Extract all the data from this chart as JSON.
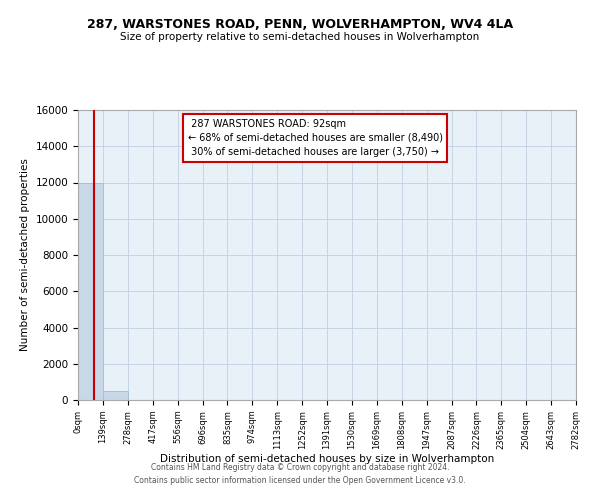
{
  "title": "287, WARSTONES ROAD, PENN, WOLVERHAMPTON, WV4 4LA",
  "subtitle": "Size of property relative to semi-detached houses in Wolverhampton",
  "xlabel": "Distribution of semi-detached houses by size in Wolverhampton",
  "ylabel": "Number of semi-detached properties",
  "property_size": 92,
  "property_label": "287 WARSTONES ROAD: 92sqm",
  "pct_smaller": 68,
  "count_smaller": 8490,
  "pct_larger": 30,
  "count_larger": 3750,
  "bar_color": "#c8d8e8",
  "bar_edge_color": "#a8c0d8",
  "property_line_color": "#cc0000",
  "annotation_box_edge": "#cc0000",
  "grid_color": "#c0cfe0",
  "background_color": "#e8f0f8",
  "ylim": [
    0,
    16000
  ],
  "yticks": [
    0,
    2000,
    4000,
    6000,
    8000,
    10000,
    12000,
    14000,
    16000
  ],
  "bin_edges": [
    0,
    139,
    278,
    417,
    556,
    696,
    835,
    974,
    1113,
    1252,
    1391,
    1530,
    1669,
    1808,
    1947,
    2087,
    2226,
    2365,
    2504,
    2643,
    2782
  ],
  "bin_labels": [
    "0sqm",
    "139sqm",
    "278sqm",
    "417sqm",
    "556sqm",
    "696sqm",
    "835sqm",
    "974sqm",
    "1113sqm",
    "1252sqm",
    "1391sqm",
    "1530sqm",
    "1669sqm",
    "1808sqm",
    "1947sqm",
    "2087sqm",
    "2226sqm",
    "2365sqm",
    "2504sqm",
    "2643sqm",
    "2782sqm"
  ],
  "bar_heights": [
    12000,
    500,
    0,
    0,
    0,
    0,
    0,
    0,
    0,
    0,
    0,
    0,
    0,
    0,
    0,
    0,
    0,
    0,
    0,
    0
  ],
  "footer_line1": "Contains HM Land Registry data © Crown copyright and database right 2024.",
  "footer_line2": "Contains public sector information licensed under the Open Government Licence v3.0."
}
